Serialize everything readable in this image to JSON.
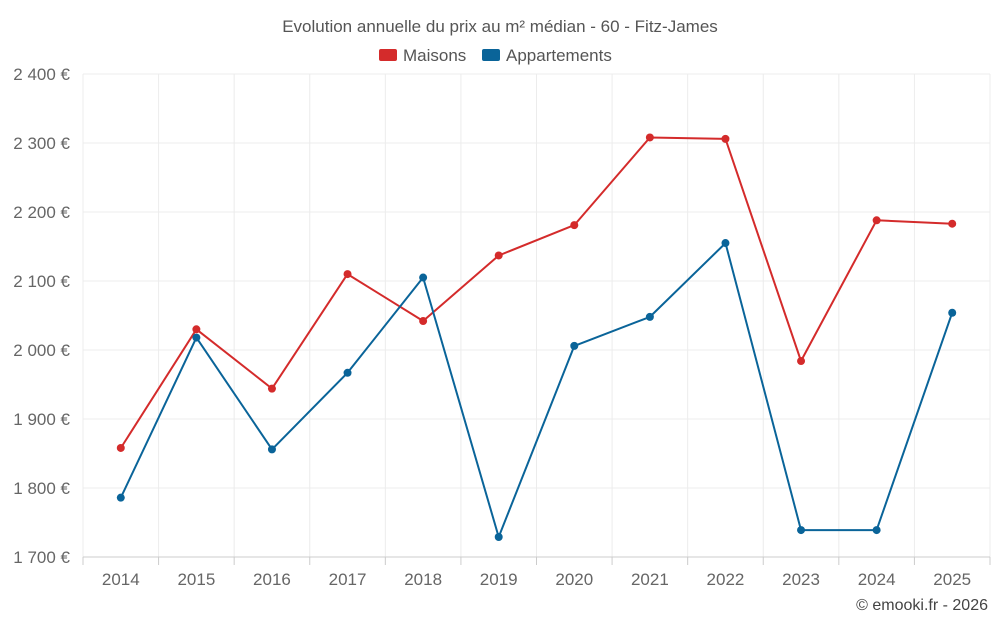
{
  "chart_data": {
    "type": "line",
    "title": "Evolution annuelle du prix au m² médian - 60 - Fitz-James",
    "categories": [
      "2014",
      "2015",
      "2016",
      "2017",
      "2018",
      "2019",
      "2020",
      "2021",
      "2022",
      "2023",
      "2024",
      "2025"
    ],
    "series": [
      {
        "name": "Maisons",
        "color": "#d42b2b",
        "values": [
          1858,
          2030,
          1944,
          2110,
          2042,
          2137,
          2181,
          2308,
          2306,
          1984,
          2188,
          2183
        ]
      },
      {
        "name": "Appartements",
        "color": "#0a6499",
        "values": [
          1786,
          2018,
          1856,
          1967,
          2105,
          1729,
          2006,
          2048,
          2155,
          1739,
          1739,
          2054
        ]
      }
    ],
    "ylim": [
      1700,
      2400
    ],
    "yticks": [
      1700,
      1800,
      1900,
      2000,
      2100,
      2200,
      2300,
      2400
    ],
    "ytick_labels": [
      "1 700 €",
      "1 800 €",
      "1 900 €",
      "2 000 €",
      "2 100 €",
      "2 200 €",
      "2 300 €",
      "2 400 €"
    ],
    "grid": true,
    "legend": "top-center",
    "xlabel": "",
    "ylabel": ""
  },
  "credit": "© emooki.fr - 2026"
}
